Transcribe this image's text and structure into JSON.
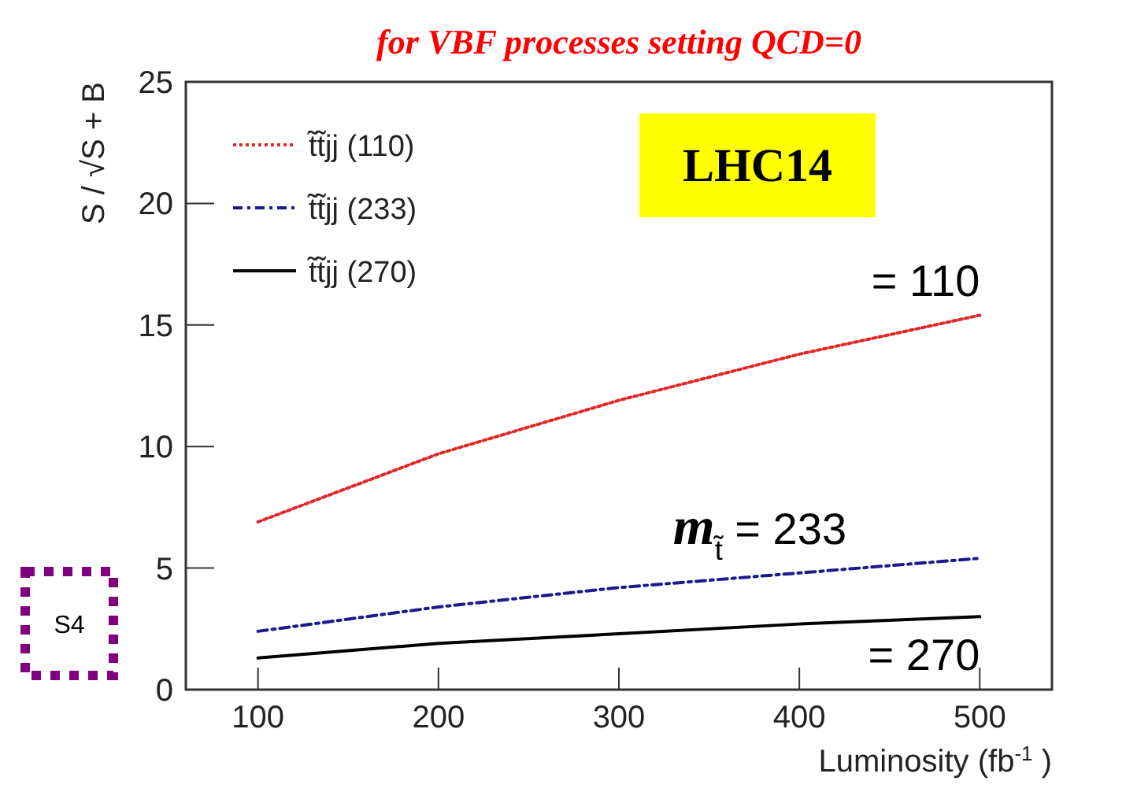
{
  "chart_data": {
    "type": "line",
    "title": "for VBF processes setting QCD=0",
    "xlabel": "Luminosity (fb$^{-1}$)",
    "ylabel": "S / √S + B",
    "x": [
      100,
      200,
      300,
      400,
      500
    ],
    "series": [
      {
        "name": "t̃t̃jj (110)",
        "color": "#e02828",
        "line_style": "dotted",
        "values": [
          6.9,
          9.7,
          11.9,
          13.8,
          15.4
        ]
      },
      {
        "name": "t̃t̃jj (233)",
        "color": "#1a1a8c",
        "line_style": "dashed",
        "values": [
          2.4,
          3.4,
          4.2,
          4.8,
          5.4
        ]
      },
      {
        "name": "t̃t̃jj (270)",
        "color": "#000000",
        "line_style": "solid",
        "values": [
          1.3,
          1.9,
          2.3,
          2.7,
          3.0
        ]
      }
    ],
    "xlim": [
      60,
      540
    ],
    "ylim": [
      0,
      25
    ],
    "xticks": [
      100,
      200,
      300,
      400,
      500
    ],
    "yticks": [
      0,
      5,
      10,
      15,
      20,
      25
    ],
    "grid": false,
    "legend": "top left",
    "annotations": [
      "LHC14",
      "S4",
      {
        "text": "= 110",
        "x": 500,
        "y": 15.4
      },
      "m$_{t̃}$ = 233",
      {
        "text": "= 270",
        "x": 500,
        "y": 3.0
      }
    ]
  }
}
